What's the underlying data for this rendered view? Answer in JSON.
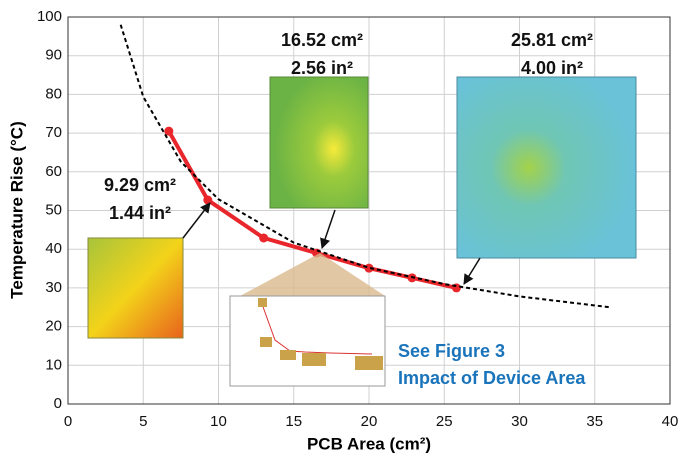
{
  "chart_data": {
    "type": "line",
    "x_label": "PCB Area (cm²)",
    "y_label": "Temperature Rise (°C)",
    "xlim": [
      0,
      40
    ],
    "xticks": [
      0,
      5,
      10,
      15,
      20,
      25,
      30,
      35,
      40
    ],
    "ylim": [
      0,
      100
    ],
    "yticks": [
      0,
      10,
      20,
      30,
      40,
      50,
      60,
      70,
      80,
      90,
      100
    ],
    "grid": true,
    "series": [
      {
        "color": "#e8262b",
        "markers": true,
        "dashed": false,
        "x": [
          6.7,
          9.29,
          13,
          16.52,
          20,
          22.86,
          25.81
        ],
        "values": [
          70.5,
          52.7,
          42.9,
          39,
          35.1,
          32.6,
          30
        ]
      },
      {
        "color": "#000000",
        "markers": false,
        "dashed": true,
        "x": [
          3.5,
          5,
          7.5,
          10,
          15,
          20,
          25,
          30,
          36
        ],
        "values": [
          98,
          79.4,
          62.6,
          52.9,
          41.7,
          35.2,
          31,
          27.8,
          25
        ]
      }
    ],
    "annotations": [
      "9.29 cm²",
      "1.44 in²",
      "16.52 cm²",
      "2.56 in²",
      "25.81 cm²",
      "4.00 in²",
      "See Figure 3",
      "Impact of Device Area"
    ]
  }
}
